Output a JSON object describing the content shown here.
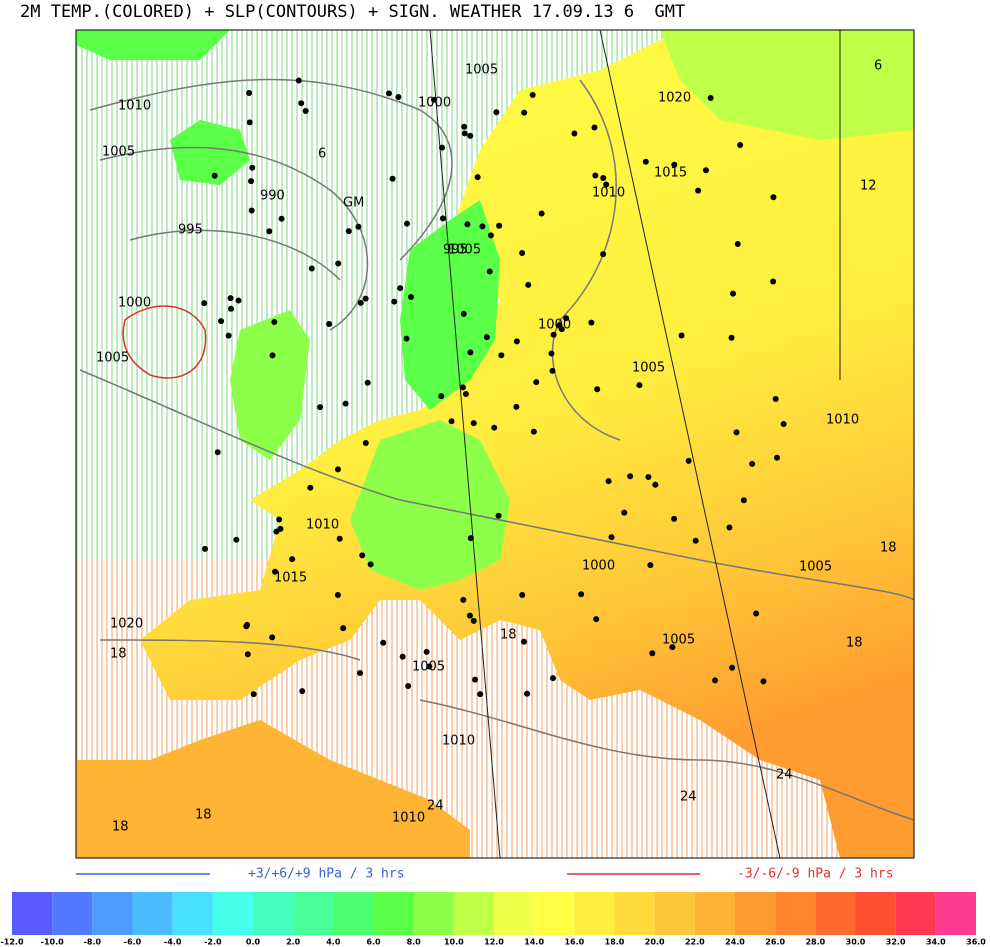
{
  "header": {
    "title": "2M TEMP.(COLORED) + SLP(CONTOURS) + SIGN. WEATHER 17.09.13 6  GMT"
  },
  "map": {
    "labels": [
      "1005",
      "1010",
      "1000",
      "1005",
      "6",
      "990",
      "995",
      "GM",
      "1000",
      "1005",
      "6",
      "12",
      "1015",
      "1010",
      "1020",
      "995",
      "1000",
      "1005",
      "1010",
      "1000",
      "1005",
      "18",
      "18",
      "1020",
      "18",
      "1005",
      "1005",
      "1010",
      "18",
      "24",
      "24",
      "24",
      "1010",
      "18",
      "18",
      "1015",
      "1010",
      "1005"
    ]
  },
  "legend": {
    "rise": {
      "text": "+3/+6/+9 hPa / 3 hrs",
      "color": "#3a5fe0"
    },
    "fall": {
      "text": "-3/-6/-9 hPa / 3 hrs",
      "color": "#e03030"
    }
  },
  "colorbar": {
    "colors": [
      "#5a5aff",
      "#5478ff",
      "#4e9bff",
      "#4abcff",
      "#47e0ff",
      "#44ffea",
      "#44ffc0",
      "#48ff98",
      "#4cff6e",
      "#5aff48",
      "#8cff48",
      "#c0ff48",
      "#f0ff48",
      "#ffff44",
      "#ffee40",
      "#ffdc3c",
      "#ffc838",
      "#ffb434",
      "#ff9c30",
      "#ff842c",
      "#ff6a2c",
      "#ff4e30",
      "#ff3a50",
      "#ff3a90"
    ],
    "labels": [
      "-12.0",
      "-10.0",
      "-8.0",
      "-6.0",
      "-4.0",
      "-2.0",
      "0.0",
      "2.0",
      "4.0",
      "6.0",
      "8.0",
      "10.0",
      "12.0",
      "14.0",
      "16.0",
      "18.0",
      "20.0",
      "22.0",
      "24.0",
      "26.0",
      "28.0",
      "30.0",
      "32.0",
      "34.0",
      "36.0"
    ]
  }
}
